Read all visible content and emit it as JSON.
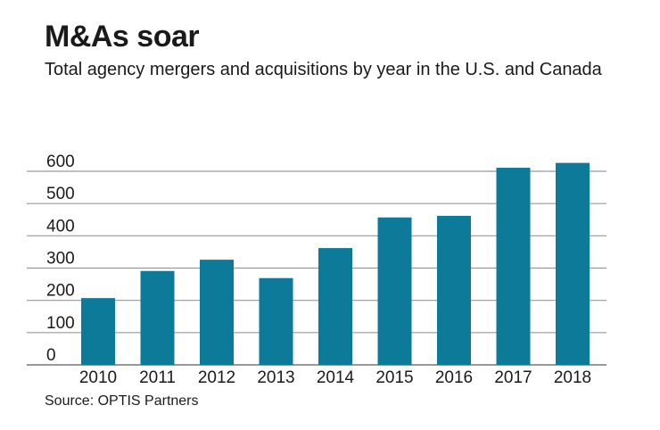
{
  "chart_data": {
    "type": "bar",
    "title": "M&As soar",
    "subtitle": "Total agency mergers and acquisitions by year in the U.S. and Canada",
    "categories": [
      "2010",
      "2011",
      "2012",
      "2013",
      "2014",
      "2015",
      "2016",
      "2017",
      "2018"
    ],
    "values": [
      207,
      291,
      326,
      269,
      362,
      457,
      462,
      611,
      626
    ],
    "yticks": [
      0,
      100,
      200,
      300,
      400,
      500,
      600
    ],
    "ylim": [
      0,
      600
    ],
    "xlabel": "",
    "ylabel": "",
    "grid": true,
    "legend": "none",
    "bar_color": "#0e7a99",
    "source": "Source: OPTIS Partners"
  }
}
